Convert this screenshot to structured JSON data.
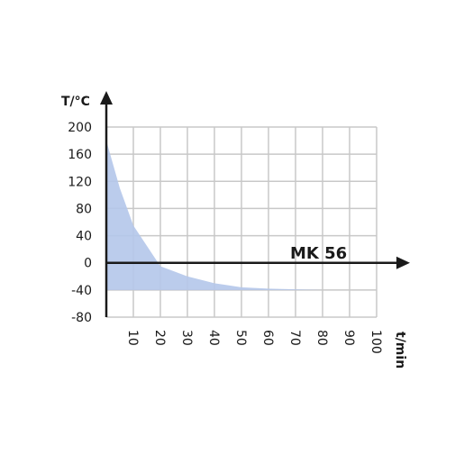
{
  "chart_data": {
    "type": "area",
    "xlabel": "t/min",
    "ylabel": "T/°C",
    "xlim": [
      0,
      100
    ],
    "ylim": [
      -80,
      200
    ],
    "x_ticks": [
      10,
      20,
      30,
      40,
      50,
      60,
      70,
      80,
      90,
      100
    ],
    "y_ticks": [
      200,
      160,
      120,
      80,
      40,
      0,
      -40,
      -80
    ],
    "grid": true,
    "series": [
      {
        "name": "MK 56",
        "x": [
          0,
          5,
          10,
          15,
          20,
          30,
          40,
          50,
          60,
          70,
          80
        ],
        "y": [
          180,
          110,
          55,
          25,
          -5,
          -20,
          -30,
          -36,
          -38,
          -39,
          -40
        ],
        "baseline": -40
      }
    ],
    "colors": {
      "fill": "#b4c6ea",
      "grid": "#c8c8c8",
      "axis": "#1a1a1a"
    }
  }
}
